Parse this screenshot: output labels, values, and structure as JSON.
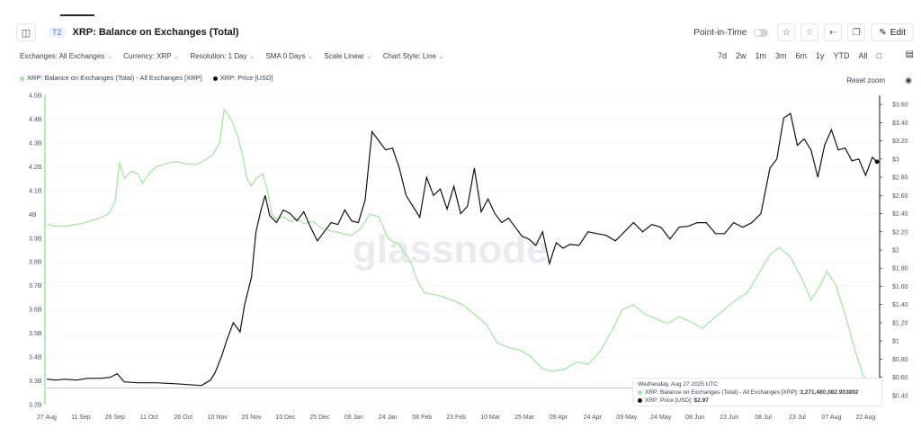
{
  "header": {
    "badge": "T2",
    "title": "XRP: Balance on Exchanges (Total)",
    "point_in_time": "Point-in-Time",
    "edit_label": "Edit"
  },
  "filters": [
    "Exchanges: All Exchanges",
    "Currency: XRP",
    "Resolution: 1 Day",
    "SMA 0 Days",
    "Scale Linear",
    "Chart Style: Line"
  ],
  "ranges": [
    "7d",
    "2w",
    "1m",
    "3m",
    "6m",
    "1y",
    "YTD",
    "All"
  ],
  "reset_zoom": "Reset zoom",
  "watermark": "glassnode",
  "tooltip": {
    "date": "Wednesday, Aug 27 2025 UTC",
    "balance_label": "XRP: Balance on Exchanges (Total) - All Exchanges [XRP]:",
    "balance_value": "3,271,480,082.903892",
    "price_label": "XRP: Price [USD]:",
    "price_value": "$2.97"
  },
  "colors": {
    "balance": "#9be89b",
    "price": "#111111"
  },
  "chart_data": {
    "type": "line",
    "series": [
      {
        "name": "XRP: Balance on Exchanges (Total) - All Exchanges [XRP]",
        "axis": "left"
      },
      {
        "name": "XRP: Price [USD]",
        "axis": "right"
      }
    ],
    "x_ticks": [
      "27 Aug",
      "11 Sep",
      "26 Sep",
      "11 Oct",
      "26 Oct",
      "10 Nov",
      "25 Nov",
      "10 Dec",
      "25 Dec",
      "09 Jan",
      "24 Jan",
      "08 Feb",
      "23 Feb",
      "10 Mar",
      "25 Mar",
      "09 Apr",
      "24 Apr",
      "09 May",
      "24 May",
      "08 Jun",
      "23 Jun",
      "08 Jul",
      "23 Jul",
      "07 Aug",
      "22 Aug"
    ],
    "y_left_ticks": [
      "3.2B",
      "3.3B",
      "3.4B",
      "3.5B",
      "3.6B",
      "3.7B",
      "3.8B",
      "3.9B",
      "4B",
      "4.1B",
      "4.2B",
      "4.3B",
      "4.4B",
      "4.5B"
    ],
    "y_right_ticks": [
      "$0.40",
      "$0.60",
      "$0.80",
      "$1",
      "$1.20",
      "$1.40",
      "$1.60",
      "$1.80",
      "$2",
      "$2.20",
      "$2.40",
      "$2.60",
      "$2.80",
      "$3",
      "$3.20",
      "$3.40",
      "$3.60"
    ],
    "y_left_range": [
      3.2,
      4.5
    ],
    "y_right_range": [
      0.3,
      3.7
    ],
    "x_range_days": [
      0,
      365
    ],
    "balance_B": [
      [
        0,
        3.96
      ],
      [
        3,
        3.95
      ],
      [
        8,
        3.95
      ],
      [
        15,
        3.96
      ],
      [
        22,
        3.98
      ],
      [
        27,
        4.0
      ],
      [
        30,
        4.05
      ],
      [
        32,
        4.22
      ],
      [
        34,
        4.15
      ],
      [
        37,
        4.18
      ],
      [
        40,
        4.17
      ],
      [
        42,
        4.13
      ],
      [
        45,
        4.17
      ],
      [
        48,
        4.2
      ],
      [
        52,
        4.21
      ],
      [
        55,
        4.22
      ],
      [
        58,
        4.22
      ],
      [
        62,
        4.21
      ],
      [
        66,
        4.21
      ],
      [
        70,
        4.23
      ],
      [
        73,
        4.25
      ],
      [
        76,
        4.3
      ],
      [
        78,
        4.44
      ],
      [
        81,
        4.4
      ],
      [
        84,
        4.33
      ],
      [
        86,
        4.25
      ],
      [
        88,
        4.15
      ],
      [
        90,
        4.12
      ],
      [
        92,
        4.15
      ],
      [
        95,
        4.17
      ],
      [
        97,
        4.1
      ],
      [
        99,
        4.0
      ],
      [
        101,
        3.98
      ],
      [
        104,
        3.99
      ],
      [
        107,
        3.97
      ],
      [
        110,
        3.98
      ],
      [
        113,
        3.96
      ],
      [
        117,
        3.97
      ],
      [
        121,
        3.94
      ],
      [
        125,
        3.93
      ],
      [
        130,
        3.92
      ],
      [
        134,
        3.91
      ],
      [
        138,
        3.94
      ],
      [
        142,
        4.0
      ],
      [
        146,
        3.99
      ],
      [
        150,
        3.9
      ],
      [
        155,
        3.87
      ],
      [
        160,
        3.8
      ],
      [
        163,
        3.72
      ],
      [
        166,
        3.67
      ],
      [
        172,
        3.66
      ],
      [
        178,
        3.64
      ],
      [
        183,
        3.62
      ],
      [
        188,
        3.58
      ],
      [
        193,
        3.54
      ],
      [
        198,
        3.46
      ],
      [
        203,
        3.44
      ],
      [
        208,
        3.43
      ],
      [
        213,
        3.4
      ],
      [
        218,
        3.35
      ],
      [
        223,
        3.34
      ],
      [
        228,
        3.35
      ],
      [
        233,
        3.38
      ],
      [
        238,
        3.37
      ],
      [
        243,
        3.42
      ],
      [
        248,
        3.5
      ],
      [
        253,
        3.6
      ],
      [
        258,
        3.62
      ],
      [
        263,
        3.58
      ],
      [
        268,
        3.56
      ],
      [
        273,
        3.54
      ],
      [
        278,
        3.57
      ],
      [
        283,
        3.55
      ],
      [
        288,
        3.52
      ],
      [
        293,
        3.56
      ],
      [
        298,
        3.6
      ],
      [
        303,
        3.64
      ],
      [
        308,
        3.67
      ],
      [
        313,
        3.75
      ],
      [
        318,
        3.83
      ],
      [
        322,
        3.86
      ],
      [
        327,
        3.82
      ],
      [
        332,
        3.73
      ],
      [
        336,
        3.64
      ],
      [
        340,
        3.7
      ],
      [
        343,
        3.76
      ],
      [
        347,
        3.7
      ],
      [
        351,
        3.58
      ],
      [
        355,
        3.44
      ],
      [
        359,
        3.32
      ],
      [
        363,
        3.29
      ],
      [
        365,
        3.27
      ]
    ],
    "price_usd": [
      [
        0,
        0.58
      ],
      [
        4,
        0.57
      ],
      [
        8,
        0.58
      ],
      [
        13,
        0.57
      ],
      [
        18,
        0.59
      ],
      [
        24,
        0.59
      ],
      [
        28,
        0.6
      ],
      [
        31,
        0.64
      ],
      [
        34,
        0.55
      ],
      [
        40,
        0.54
      ],
      [
        48,
        0.54
      ],
      [
        56,
        0.53
      ],
      [
        62,
        0.52
      ],
      [
        68,
        0.51
      ],
      [
        72,
        0.57
      ],
      [
        74,
        0.65
      ],
      [
        77,
        0.84
      ],
      [
        79,
        1.0
      ],
      [
        82,
        1.2
      ],
      [
        85,
        1.1
      ],
      [
        87,
        1.4
      ],
      [
        90,
        1.7
      ],
      [
        92,
        2.2
      ],
      [
        94,
        2.42
      ],
      [
        96,
        2.6
      ],
      [
        98,
        2.38
      ],
      [
        101,
        2.3
      ],
      [
        104,
        2.44
      ],
      [
        107,
        2.4
      ],
      [
        110,
        2.32
      ],
      [
        113,
        2.42
      ],
      [
        116,
        2.25
      ],
      [
        119,
        2.1
      ],
      [
        122,
        2.2
      ],
      [
        125,
        2.3
      ],
      [
        128,
        2.28
      ],
      [
        131,
        2.44
      ],
      [
        134,
        2.32
      ],
      [
        137,
        2.3
      ],
      [
        140,
        2.55
      ],
      [
        143,
        3.3
      ],
      [
        146,
        3.2
      ],
      [
        149,
        3.1
      ],
      [
        152,
        3.12
      ],
      [
        155,
        2.9
      ],
      [
        158,
        2.6
      ],
      [
        161,
        2.48
      ],
      [
        164,
        2.36
      ],
      [
        167,
        2.8
      ],
      [
        170,
        2.6
      ],
      [
        173,
        2.67
      ],
      [
        176,
        2.45
      ],
      [
        179,
        2.7
      ],
      [
        182,
        2.4
      ],
      [
        185,
        2.48
      ],
      [
        188,
        2.9
      ],
      [
        191,
        2.42
      ],
      [
        194,
        2.56
      ],
      [
        197,
        2.4
      ],
      [
        200,
        2.3
      ],
      [
        203,
        2.35
      ],
      [
        206,
        2.25
      ],
      [
        209,
        2.15
      ],
      [
        212,
        2.12
      ],
      [
        215,
        2.05
      ],
      [
        218,
        2.2
      ],
      [
        221,
        1.85
      ],
      [
        224,
        2.08
      ],
      [
        227,
        2.02
      ],
      [
        230,
        2.06
      ],
      [
        234,
        2.05
      ],
      [
        238,
        2.2
      ],
      [
        242,
        2.18
      ],
      [
        246,
        2.16
      ],
      [
        250,
        2.1
      ],
      [
        254,
        2.2
      ],
      [
        258,
        2.3
      ],
      [
        262,
        2.2
      ],
      [
        266,
        2.28
      ],
      [
        270,
        2.25
      ],
      [
        274,
        2.12
      ],
      [
        278,
        2.25
      ],
      [
        282,
        2.26
      ],
      [
        286,
        2.3
      ],
      [
        290,
        2.3
      ],
      [
        294,
        2.18
      ],
      [
        298,
        2.18
      ],
      [
        302,
        2.3
      ],
      [
        306,
        2.25
      ],
      [
        310,
        2.3
      ],
      [
        314,
        2.4
      ],
      [
        318,
        2.9
      ],
      [
        321,
        3.0
      ],
      [
        324,
        3.45
      ],
      [
        327,
        3.5
      ],
      [
        330,
        3.15
      ],
      [
        333,
        3.22
      ],
      [
        336,
        3.1
      ],
      [
        339,
        2.8
      ],
      [
        342,
        3.15
      ],
      [
        345,
        3.32
      ],
      [
        348,
        3.1
      ],
      [
        351,
        3.12
      ],
      [
        354,
        2.98
      ],
      [
        357,
        3.0
      ],
      [
        360,
        2.82
      ],
      [
        363,
        3.02
      ],
      [
        365,
        2.97
      ]
    ]
  }
}
